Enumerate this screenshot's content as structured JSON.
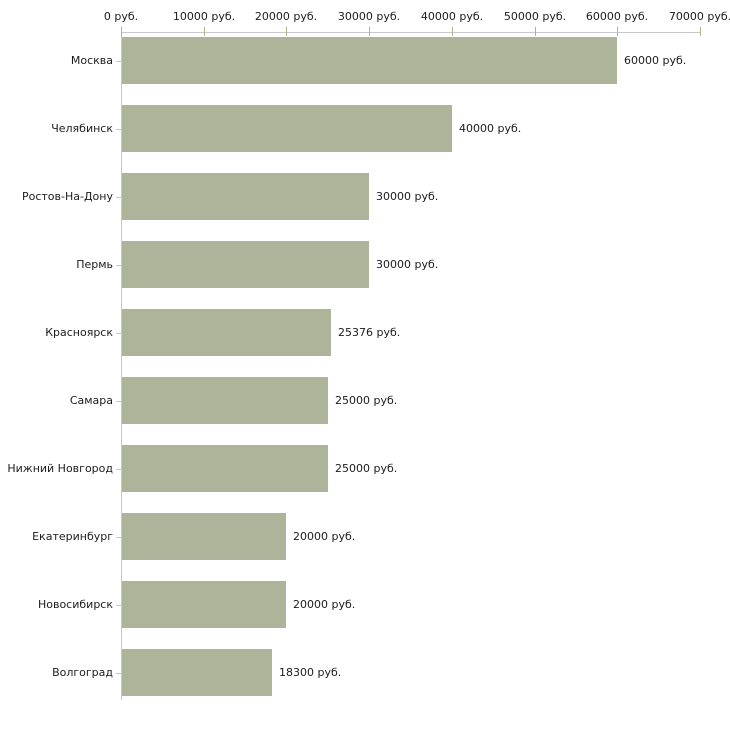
{
  "chart_data": {
    "type": "bar",
    "orientation": "horizontal",
    "title": "",
    "xlabel": "",
    "ylabel": "",
    "categories": [
      "Москва",
      "Челябинск",
      "Ростов-На-Дону",
      "Пермь",
      "Красноярск",
      "Самара",
      "Нижний Новгород",
      "Екатеринбург",
      "Новосибирск",
      "Волгоград"
    ],
    "values": [
      60000,
      40000,
      30000,
      30000,
      25376,
      25000,
      25000,
      20000,
      20000,
      18300
    ],
    "value_labels": [
      "60000 руб.",
      "40000 руб.",
      "30000 руб.",
      "30000 руб.",
      "25376 руб.",
      "25000 руб.",
      "25000 руб.",
      "20000 руб.",
      "20000 руб.",
      "18300 руб."
    ],
    "xlim": [
      0,
      70000
    ],
    "x_ticks": [
      0,
      10000,
      20000,
      30000,
      40000,
      50000,
      60000,
      70000
    ],
    "x_tick_labels": [
      "0 руб.",
      "10000 руб.",
      "20000 руб.",
      "30000 руб.",
      "40000 руб.",
      "50000 руб.",
      "60000 руб.",
      "70000 руб."
    ],
    "axis_position": "top",
    "grid": false,
    "legend": false,
    "colors": {
      "bar_fill": "#adb499",
      "axis_line": "#c9c9c9",
      "tick_mark": "#b2b388",
      "text": "#1c1c1c"
    }
  }
}
